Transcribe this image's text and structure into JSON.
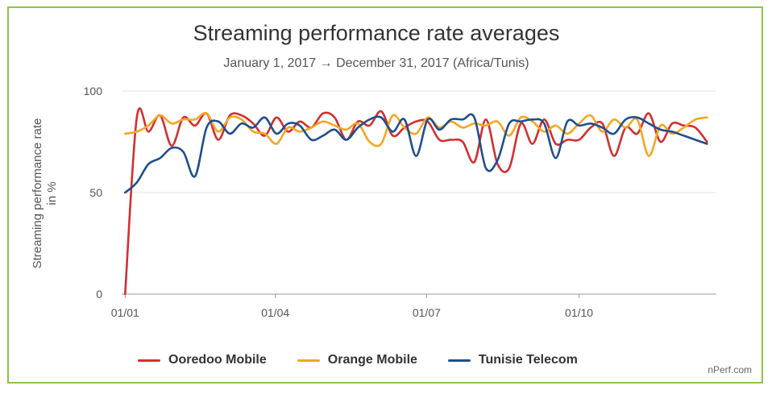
{
  "chart_data": {
    "type": "line",
    "title": "Streaming performance rate averages",
    "subtitle": "January 1, 2017 → December 31, 2017 (Africa/Tunis)",
    "ylabel_line1": "Streaming performance rate",
    "ylabel_line2": "in %",
    "xlabel": "",
    "ylim": [
      0,
      100
    ],
    "yticks": [
      0,
      50,
      100
    ],
    "xlim": [
      -0.3,
      50.8
    ],
    "xticks": [
      {
        "label": "01/01",
        "week": 0
      },
      {
        "label": "01/04",
        "week": 12.9
      },
      {
        "label": "01/07",
        "week": 25.9
      },
      {
        "label": "01/10",
        "week": 39.0
      }
    ],
    "x_unit": "week of 2017",
    "grid": true,
    "legend_position": "bottom",
    "series": [
      {
        "name": "Ooredoo Mobile",
        "color": "#d32f2f",
        "values": [
          0,
          87,
          80,
          88,
          73,
          87,
          83,
          89,
          76,
          88,
          88,
          84,
          78,
          87,
          80,
          85,
          82,
          89,
          87,
          76,
          85,
          83,
          90,
          78,
          82,
          85,
          85,
          76,
          76,
          75,
          65,
          86,
          64,
          62,
          84,
          74,
          86,
          74,
          76,
          76,
          82,
          84,
          68,
          82,
          79,
          89,
          75,
          84,
          83,
          82,
          75
        ]
      },
      {
        "name": "Orange Mobile",
        "color": "#f5a623",
        "values": [
          79,
          80,
          83,
          88,
          84,
          86,
          86,
          89,
          80,
          87,
          86,
          80,
          79,
          74,
          82,
          80,
          82,
          85,
          83,
          81,
          84,
          75,
          74,
          88,
          82,
          79,
          87,
          82,
          85,
          82,
          84,
          83,
          85,
          78,
          87,
          85,
          80,
          83,
          79,
          84,
          88,
          80,
          86,
          82,
          86,
          68,
          83,
          79,
          82,
          86,
          87
        ]
      },
      {
        "name": "Tunisie Telecom",
        "color": "#1e4f8f",
        "values": [
          50,
          55,
          64,
          67,
          72,
          70,
          58,
          82,
          85,
          79,
          84,
          82,
          87,
          79,
          84,
          83,
          76,
          78,
          81,
          76,
          82,
          86,
          87,
          80,
          86,
          68,
          86,
          81,
          86,
          86,
          87,
          62,
          66,
          84,
          85,
          86,
          84,
          67,
          85,
          83,
          84,
          82,
          79,
          86,
          87,
          84,
          81,
          80,
          78,
          76,
          74
        ]
      }
    ],
    "credit": "nPerf.com"
  }
}
